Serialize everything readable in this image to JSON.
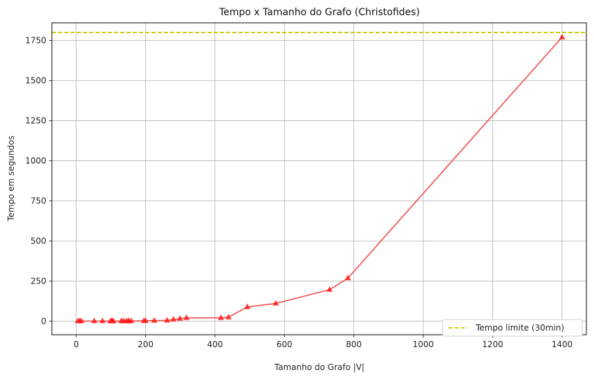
{
  "chart_data": {
    "type": "line",
    "title": "Tempo x Tamanho do Grafo (Christofides)",
    "xlabel": "Tamanho do Grafo |V|",
    "ylabel": "Tempo em segundos",
    "xlim": [
      -70,
      1470
    ],
    "ylim": [
      -85,
      1860
    ],
    "xticks": [
      0,
      200,
      400,
      600,
      800,
      1000,
      1200,
      1400
    ],
    "yticks": [
      0,
      250,
      500,
      750,
      1000,
      1250,
      1500,
      1750
    ],
    "grid": true,
    "legend_position": "bottom-right",
    "series": [
      {
        "color": "#f24a4a",
        "marker_color": "#ff1a1a",
        "marker": "triangle",
        "x": [
          5,
          10,
          15,
          52,
          76,
          99,
          101,
          105,
          107,
          130,
          136,
          144,
          150,
          152,
          159,
          195,
          200,
          225,
          262,
          280,
          299,
          318,
          417,
          439,
          493,
          575,
          730,
          783,
          1400
        ],
        "y": [
          0,
          0,
          0,
          0,
          0,
          0,
          0,
          0,
          0,
          0,
          0,
          0,
          0,
          0,
          0,
          2,
          2,
          3,
          4,
          10,
          15,
          20,
          20,
          24,
          88,
          110,
          196,
          268,
          1770
        ]
      }
    ],
    "reference_line": {
      "name": "Tempo limite (30min)",
      "y": 1800,
      "color": "#c8c800",
      "style": "dashed"
    }
  }
}
